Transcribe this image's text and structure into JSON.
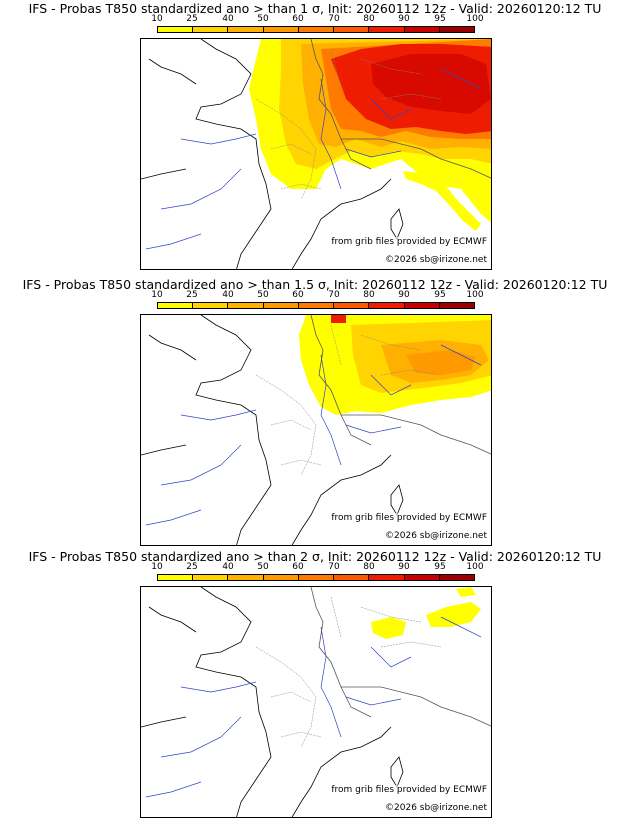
{
  "legend": {
    "ticks": [
      "10",
      "25",
      "40",
      "50",
      "60",
      "70",
      "80",
      "90",
      "95",
      "100"
    ],
    "colors": [
      "#ffff00",
      "#ffd400",
      "#ffb000",
      "#ff9900",
      "#ff7a00",
      "#ff5a00",
      "#ee1c00",
      "#c80000",
      "#9a0000"
    ]
  },
  "panels": [
    {
      "title": "IFS - Probas T850  standardized ano > than 1 σ, Init: 20260112 12z - Valid: 20260120:12 TU",
      "credit_source": "from grib files provided by ECMWF",
      "credit_site": "©2026 sb@irizone.net",
      "threshold": "1 σ"
    },
    {
      "title": "IFS - Probas T850  standardized ano > than 1.5 σ, Init: 20260112 12z - Valid: 20260120:12 TU",
      "credit_source": "from grib files provided by ECMWF",
      "credit_site": "©2026 sb@irizone.net",
      "threshold": "1.5 σ"
    },
    {
      "title": "IFS - Probas T850  standardized ano > than 2 σ, Init: 20260112 12z - Valid: 20260120:12 TU",
      "credit_source": "from grib files provided by ECMWF",
      "credit_site": "©2026 sb@irizone.net",
      "threshold": "2 σ"
    }
  ]
}
